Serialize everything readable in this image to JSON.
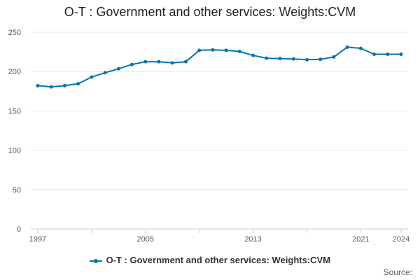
{
  "title": "O-T : Government and other services: Weights:CVM",
  "legend_label": "O-T : Government and other services: Weights:CVM",
  "source_label": "Source:",
  "colors": {
    "series": "#0075b0",
    "grid": "#e6e6e6",
    "axis": "#cccccc"
  },
  "chart_data": {
    "type": "line",
    "title": "O-T : Government and other services: Weights:CVM",
    "xlabel": "",
    "ylabel": "",
    "ylim": [
      0,
      250
    ],
    "yticks": [
      0,
      50,
      100,
      150,
      200,
      250
    ],
    "xlim": [
      1997,
      2024
    ],
    "xtick_labels": [
      1997,
      2005,
      2013,
      2021,
      2024
    ],
    "grid": true,
    "legend_position": "bottom",
    "series": [
      {
        "name": "O-T : Government and other services: Weights:CVM",
        "x": [
          1997,
          1998,
          1999,
          2000,
          2001,
          2002,
          2003,
          2004,
          2005,
          2006,
          2007,
          2008,
          2009,
          2010,
          2011,
          2012,
          2013,
          2014,
          2015,
          2016,
          2017,
          2018,
          2019,
          2020,
          2021,
          2022,
          2023,
          2024
        ],
        "values": [
          182,
          180.5,
          182,
          184.5,
          193,
          198.5,
          203.5,
          209,
          212.5,
          212.5,
          211,
          212.5,
          227,
          227.5,
          227,
          225.5,
          220.5,
          217,
          216.5,
          216,
          215,
          215.5,
          218.5,
          231,
          229.5,
          222,
          222,
          222
        ]
      }
    ]
  }
}
